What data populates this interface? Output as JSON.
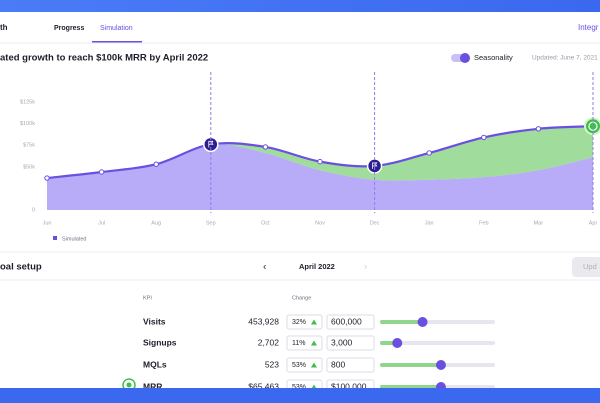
{
  "nav": {
    "brand": "th",
    "tabs": [
      "Progress",
      "Simulation"
    ],
    "right": "Integr"
  },
  "header": {
    "title": "ated growth to reach $100k MRR by April 2022",
    "toggle": "Seasonality",
    "updated": "Updated: June 7, 2021"
  },
  "chart": {
    "type": "area",
    "categories": [
      "Jun",
      "Jul",
      "Aug",
      "Sep",
      "Oct",
      "Nov",
      "Dec",
      "Jan",
      "Feb",
      "Mar",
      "Apr"
    ],
    "ylim": [
      0,
      125
    ],
    "yticks": [
      0,
      {
        "value": 50,
        "label": "$50k"
      },
      {
        "value": 75,
        "label": "$75k"
      },
      {
        "value": 100,
        "label": "$100k"
      },
      {
        "value": 125,
        "label": "$125k"
      }
    ],
    "series": [
      {
        "name": "Simulated",
        "color": "#6b4fe0",
        "values": [
          37,
          44,
          53,
          76,
          73,
          56,
          51,
          66,
          84,
          94,
          97
        ]
      },
      {
        "color": "#b4a6f8",
        "values": [
          37,
          44,
          53,
          76,
          66,
          46,
          35,
          35,
          38,
          46,
          61
        ]
      }
    ]
  },
  "goal": {
    "title": "oal setup",
    "prev": "‹",
    "month": "April 2022",
    "next": "›",
    "button": "Upd"
  },
  "table": {
    "headers": [
      "KPI",
      "Change"
    ],
    "rows": [
      [
        "Visits",
        "453,928",
        "32%",
        "600,000"
      ],
      [
        "Signups",
        "2,702",
        "11%",
        "3,000"
      ],
      [
        "MQLs",
        "523",
        "53%",
        "800"
      ],
      [
        "MRR",
        "$65,463",
        "53%",
        "$100,000"
      ]
    ],
    "sliders": [
      0.37,
      0.15,
      0.53,
      0.53
    ]
  }
}
